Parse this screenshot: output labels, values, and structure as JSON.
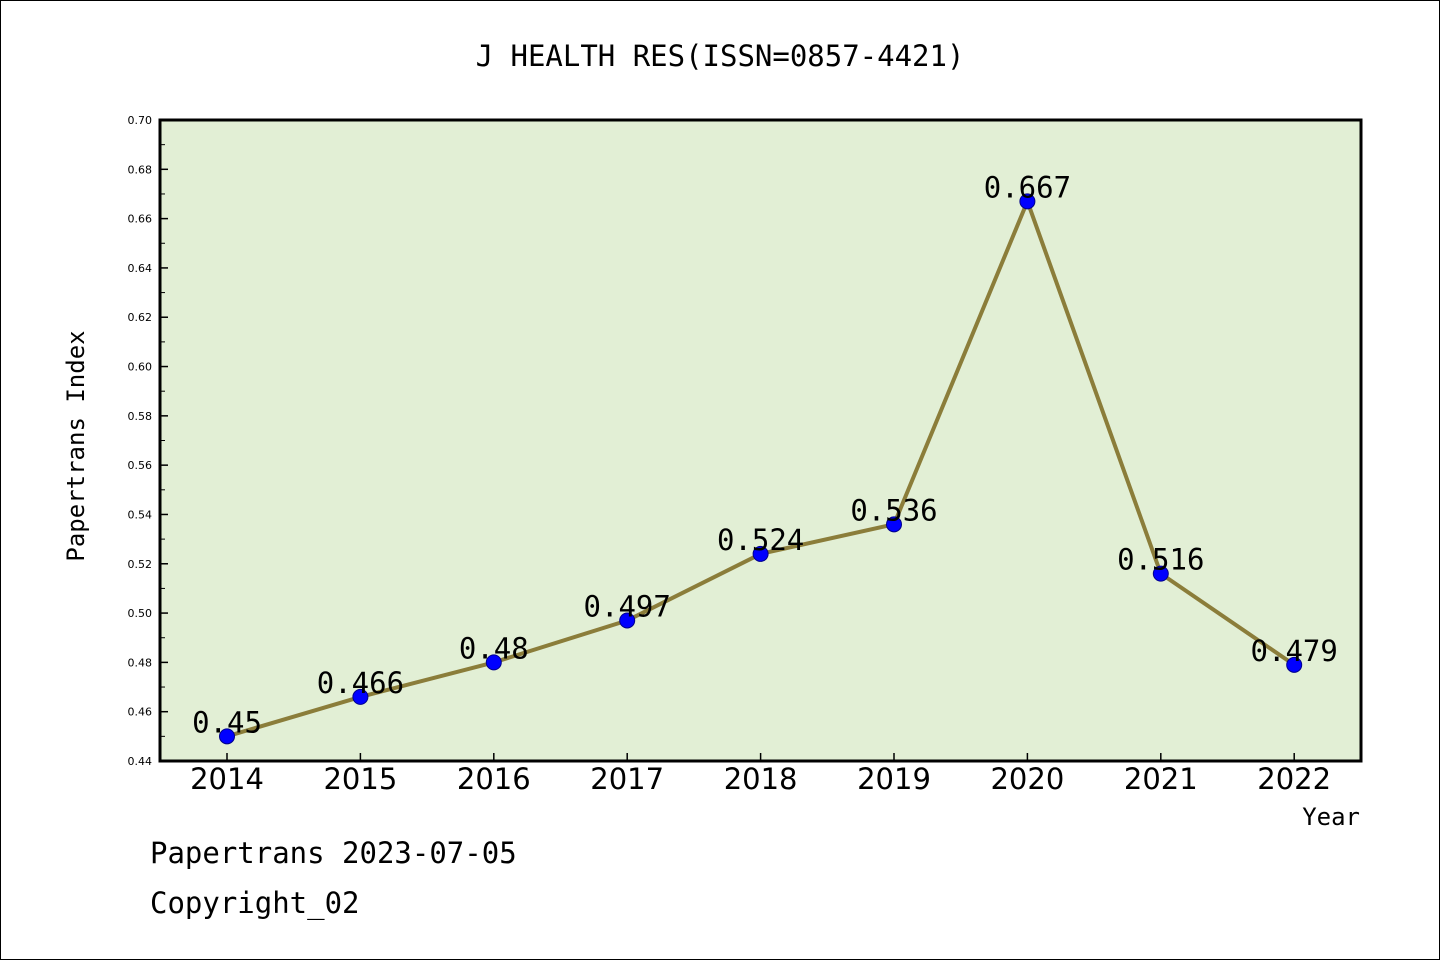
{
  "footer": {
    "line1": "Papertrans 2023-07-05",
    "line2": "Copyright_02"
  },
  "chart_data": {
    "type": "line",
    "title": "J HEALTH RES(ISSN=0857-4421)",
    "xlabel": "Year",
    "ylabel": "Papertrans Index",
    "categories": [
      "2014",
      "2015",
      "2016",
      "2017",
      "2018",
      "2019",
      "2020",
      "2021",
      "2022"
    ],
    "values": [
      0.45,
      0.466,
      0.48,
      0.497,
      0.524,
      0.536,
      0.667,
      0.516,
      0.479
    ],
    "data_labels": [
      "0.45",
      "0.466",
      "0.48",
      "0.497",
      "0.524",
      "0.536",
      "0.667",
      "0.516",
      "0.479"
    ],
    "ylim": [
      0.44,
      0.7
    ],
    "yticks": [
      "0.44",
      "0.46",
      "0.48",
      "0.50",
      "0.52",
      "0.54",
      "0.56",
      "0.58",
      "0.60",
      "0.62",
      "0.64",
      "0.66",
      "0.68",
      "0.70"
    ],
    "grid": false,
    "legend": "none",
    "colors": {
      "plot_background": "#e2efd5",
      "line": "#8b7d3a",
      "marker": "#0000ff"
    }
  }
}
